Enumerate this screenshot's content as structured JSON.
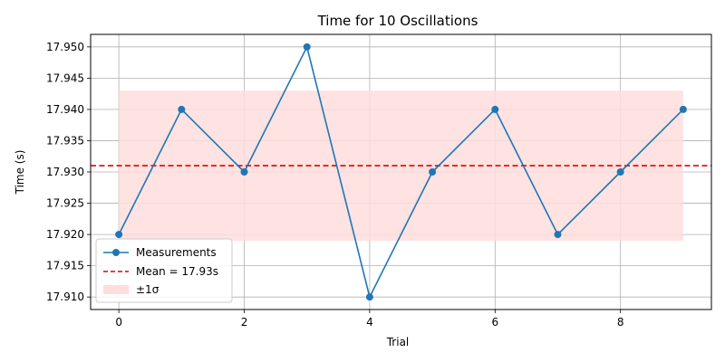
{
  "chart_data": {
    "type": "line",
    "title": "Time for 10 Oscillations",
    "xlabel": "Trial",
    "ylabel": "Time (s)",
    "x": [
      0,
      1,
      2,
      3,
      4,
      5,
      6,
      7,
      8,
      9
    ],
    "series": [
      {
        "name": "Measurements",
        "values": [
          17.92,
          17.94,
          17.93,
          17.95,
          17.91,
          17.93,
          17.94,
          17.92,
          17.93,
          17.94
        ],
        "color": "#1f77b4"
      }
    ],
    "mean": {
      "label": "Mean = 17.93s",
      "value": 17.931,
      "color": "#e00000"
    },
    "band": {
      "label": "±1σ",
      "low": 17.919,
      "high": 17.943,
      "color": "#ffdddd"
    },
    "xlim": [
      -0.45,
      9.45
    ],
    "ylim": [
      17.908,
      17.952
    ],
    "x_ticks": [
      0,
      2,
      4,
      6,
      8
    ],
    "y_ticks": [
      17.91,
      17.915,
      17.92,
      17.925,
      17.93,
      17.935,
      17.94,
      17.945,
      17.95
    ],
    "y_tick_decimals": 3,
    "grid": true,
    "legend_position": "lower-left"
  }
}
